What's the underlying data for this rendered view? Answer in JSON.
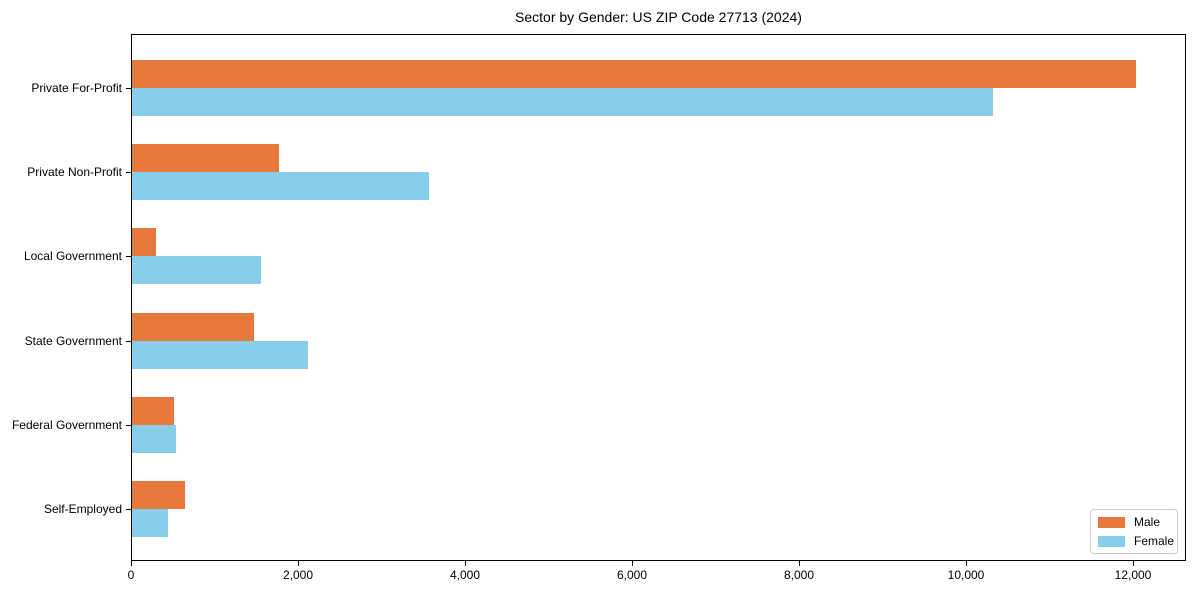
{
  "title": "Sector by Gender: US ZIP Code 27713 (2024)",
  "chart_data": {
    "type": "bar",
    "orientation": "horizontal",
    "title": "Sector by Gender: US ZIP Code 27713 (2024)",
    "categories": [
      "Private For-Profit",
      "Private Non-Profit",
      "Local Government",
      "State Government",
      "Federal Government",
      "Self-Employed"
    ],
    "series": [
      {
        "name": "Male",
        "color": "#e8793c",
        "values": [
          12020,
          1760,
          290,
          1460,
          500,
          640
        ]
      },
      {
        "name": "Female",
        "color": "#87ceeb",
        "values": [
          10310,
          3560,
          1550,
          2110,
          530,
          430
        ]
      }
    ],
    "xlabel": "",
    "ylabel": "",
    "x_ticks": [
      0,
      2000,
      4000,
      6000,
      8000,
      10000,
      12000
    ],
    "x_tick_labels": [
      "0",
      "2,000",
      "4,000",
      "6,000",
      "8,000",
      "10,000",
      "12,000"
    ],
    "xlim": [
      0,
      12635
    ],
    "grid": false,
    "legend_position": "lower right",
    "legend_border_color": "#cccccc"
  }
}
